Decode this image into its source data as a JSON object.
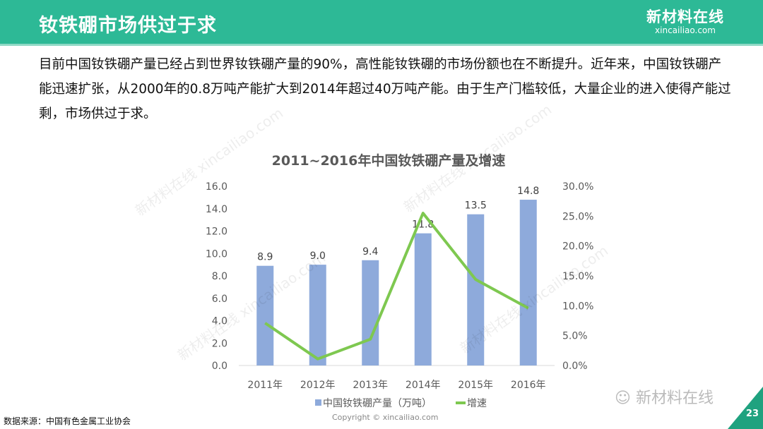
{
  "header": {
    "title": "钕铁硼市场供过于求",
    "logo_cn": "新材料在线",
    "logo_en": "xincailiao.com"
  },
  "paragraph": "目前中国钕铁硼产量已经占到世界钕铁硼产量的90%，高性能钕铁硼的市场份额也在不断提升。近年来，中国钕铁硼产能迅速扩张，从2000年的0.8万吨产能扩大到2014年超过40万吨产能。由于生产门槛较低，大量企业的进入使得产能过剩，市场供过于求。",
  "chart_data": {
    "type": "bar+line",
    "title": "2011~2016年中国钕铁硼产量及增速",
    "categories": [
      "2011年",
      "2012年",
      "2013年",
      "2014年",
      "2015年",
      "2016年"
    ],
    "series": [
      {
        "name": "中国钕铁硼产量（万吨）",
        "type": "bar",
        "axis": "left",
        "values": [
          8.9,
          9.0,
          9.4,
          11.8,
          13.5,
          14.8
        ],
        "labels": [
          "8.9",
          "9.0",
          "9.4",
          "11.8",
          "13.5",
          "14.8"
        ],
        "color": "#8eaadb"
      },
      {
        "name": "增速",
        "type": "line",
        "axis": "right",
        "values": [
          7.1,
          1.1,
          4.4,
          25.5,
          14.4,
          9.6
        ],
        "color": "#7ec850"
      }
    ],
    "y_left": {
      "range": [
        0,
        16
      ],
      "ticks": [
        "0.0",
        "2.0",
        "4.0",
        "6.0",
        "8.0",
        "10.0",
        "12.0",
        "14.0",
        "16.0"
      ]
    },
    "y_right": {
      "range": [
        0,
        30
      ],
      "ticks": [
        "0.0%",
        "5.0%",
        "10.0%",
        "15.0%",
        "20.0%",
        "25.0%",
        "30.0%"
      ]
    },
    "grid": false,
    "legend": "bottom"
  },
  "footer": {
    "source": "数据来源：中国有色金属工业协会",
    "copyright": "Copyright © xincailiao.com",
    "wechat": "新材料在线",
    "page": "23"
  },
  "watermark": "新材料在线 xincailiao.com"
}
